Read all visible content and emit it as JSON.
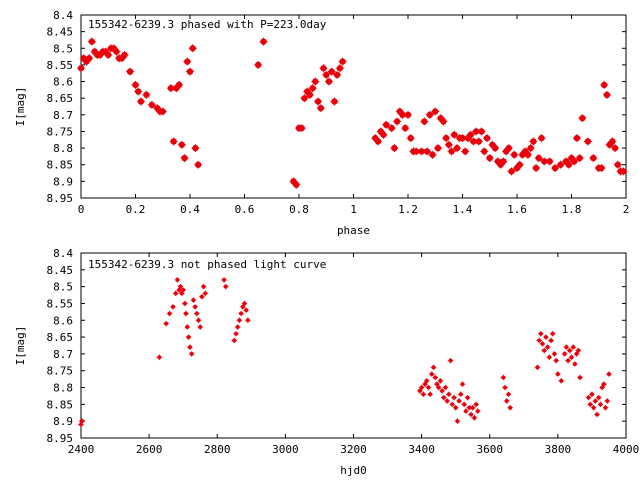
{
  "chart_data": [
    {
      "type": "scatter",
      "title": "155342-6239.3 phased with P=223.0day",
      "xlabel": "phase",
      "ylabel": "I[mag]",
      "xlim": [
        0,
        2
      ],
      "ylim": [
        8.95,
        8.4
      ],
      "y_inverted": true,
      "xticks": [
        "0",
        "0.2",
        "0.4",
        "0.6",
        "0.8",
        "1",
        "1.2",
        "1.4",
        "1.6",
        "1.8",
        "2"
      ],
      "yticks": [
        "8.4",
        "8.45",
        "8.5",
        "8.55",
        "8.6",
        "8.65",
        "8.7",
        "8.75",
        "8.8",
        "8.85",
        "8.9",
        "8.95"
      ],
      "marker_color": "#e8000b",
      "series": [
        {
          "x": [
            0.0,
            0.01,
            0.02,
            0.03,
            0.04,
            0.05,
            0.06,
            0.07,
            0.08,
            0.09,
            0.1,
            0.11,
            0.12,
            0.13,
            0.14,
            0.15,
            0.16,
            0.18,
            0.2,
            0.21,
            0.22,
            0.24,
            0.26,
            0.28,
            0.29,
            0.3,
            0.33,
            0.34,
            0.35,
            0.36,
            0.37,
            0.38,
            0.39,
            0.4,
            0.41,
            0.42,
            0.43,
            0.65,
            0.67,
            0.78,
            0.79,
            0.8,
            0.81,
            0.82,
            0.83,
            0.84,
            0.85,
            0.86,
            0.87,
            0.88,
            0.89,
            0.9,
            0.91,
            0.92,
            0.93,
            0.94,
            0.95,
            0.96,
            1.08,
            1.09,
            1.1,
            1.11,
            1.12,
            1.14,
            1.15,
            1.16,
            1.17,
            1.18,
            1.19,
            1.2,
            1.21,
            1.22,
            1.23,
            1.25,
            1.26,
            1.27,
            1.28,
            1.29,
            1.3,
            1.31,
            1.32,
            1.33,
            1.34,
            1.35,
            1.36,
            1.37,
            1.38,
            1.39,
            1.4,
            1.41,
            1.42,
            1.43,
            1.44,
            1.45,
            1.46,
            1.47,
            1.48,
            1.49,
            1.5,
            1.51,
            1.52,
            1.53,
            1.54,
            1.55,
            1.56,
            1.57,
            1.58,
            1.59,
            1.6,
            1.61,
            1.62,
            1.63,
            1.64,
            1.65,
            1.66,
            1.67,
            1.68,
            1.69,
            1.7,
            1.72,
            1.74,
            1.76,
            1.78,
            1.79,
            1.8,
            1.81,
            1.82,
            1.83,
            1.84,
            1.86,
            1.88,
            1.9,
            1.91,
            1.92,
            1.93,
            1.94,
            1.95,
            1.96,
            1.97,
            1.98,
            1.99
          ],
          "y": [
            8.56,
            8.53,
            8.54,
            8.53,
            8.48,
            8.51,
            8.52,
            8.52,
            8.51,
            8.51,
            8.52,
            8.5,
            8.5,
            8.51,
            8.53,
            8.53,
            8.52,
            8.57,
            8.61,
            8.63,
            8.66,
            8.64,
            8.67,
            8.68,
            8.69,
            8.69,
            8.62,
            8.78,
            8.62,
            8.61,
            8.79,
            8.83,
            8.54,
            8.57,
            8.5,
            8.8,
            8.85,
            8.55,
            8.48,
            8.9,
            8.91,
            8.74,
            8.74,
            8.65,
            8.63,
            8.64,
            8.62,
            8.6,
            8.66,
            8.68,
            8.56,
            8.58,
            8.6,
            8.57,
            8.66,
            8.58,
            8.56,
            8.54,
            8.77,
            8.78,
            8.75,
            8.76,
            8.73,
            8.74,
            8.8,
            8.72,
            8.69,
            8.7,
            8.74,
            8.7,
            8.77,
            8.81,
            8.81,
            8.81,
            8.72,
            8.81,
            8.7,
            8.82,
            8.69,
            8.8,
            8.71,
            8.72,
            8.77,
            8.79,
            8.81,
            8.76,
            8.8,
            8.77,
            8.77,
            8.81,
            8.77,
            8.76,
            8.78,
            8.75,
            8.78,
            8.75,
            8.81,
            8.77,
            8.83,
            8.79,
            8.8,
            8.84,
            8.85,
            8.84,
            8.81,
            8.8,
            8.87,
            8.82,
            8.86,
            8.85,
            8.82,
            8.81,
            8.82,
            8.8,
            8.78,
            8.86,
            8.83,
            8.77,
            8.84,
            8.84,
            8.86,
            8.85,
            8.84,
            8.85,
            8.83,
            8.84,
            8.77,
            8.83,
            8.71,
            8.78,
            8.83,
            8.86,
            8.86,
            8.61,
            8.64,
            8.79,
            8.78,
            8.8,
            8.85,
            8.87,
            8.87
          ]
        }
      ]
    },
    {
      "type": "scatter",
      "title": "155342-6239.3 not phased light curve",
      "xlabel": "hjd0",
      "ylabel": "I[mag]",
      "xlim": [
        2400,
        4000
      ],
      "ylim": [
        8.95,
        8.4
      ],
      "y_inverted": true,
      "xticks": [
        "2400",
        "2600",
        "2800",
        "3000",
        "3200",
        "3400",
        "3600",
        "3800",
        "4000"
      ],
      "yticks": [
        "8.4",
        "8.45",
        "8.5",
        "8.55",
        "8.6",
        "8.65",
        "8.7",
        "8.75",
        "8.8",
        "8.85",
        "8.9",
        "8.95"
      ],
      "marker_color": "#e8000b",
      "series": [
        {
          "x": [
            2400,
            2402,
            2403,
            2630,
            2650,
            2660,
            2670,
            2678,
            2683,
            2688,
            2692,
            2696,
            2700,
            2705,
            2708,
            2712,
            2716,
            2720,
            2725,
            2730,
            2735,
            2740,
            2745,
            2750,
            2755,
            2760,
            2765,
            2820,
            2825,
            2850,
            2855,
            2860,
            2865,
            2870,
            2875,
            2880,
            2885,
            2890,
            3395,
            3400,
            3405,
            3410,
            3415,
            3420,
            3425,
            3430,
            3435,
            3440,
            3445,
            3450,
            3455,
            3460,
            3465,
            3470,
            3475,
            3480,
            3485,
            3490,
            3495,
            3500,
            3505,
            3510,
            3515,
            3520,
            3525,
            3530,
            3535,
            3540,
            3545,
            3550,
            3555,
            3560,
            3565,
            3640,
            3645,
            3650,
            3655,
            3660,
            3740,
            3745,
            3750,
            3755,
            3760,
            3765,
            3770,
            3775,
            3780,
            3785,
            3790,
            3795,
            3800,
            3810,
            3820,
            3825,
            3830,
            3835,
            3840,
            3845,
            3850,
            3855,
            3860,
            3865,
            3890,
            3895,
            3900,
            3905,
            3910,
            3915,
            3920,
            3925,
            3930,
            3935,
            3940,
            3945,
            3950
          ],
          "y": [
            8.91,
            8.9,
            8.9,
            8.71,
            8.61,
            8.58,
            8.56,
            8.52,
            8.48,
            8.51,
            8.5,
            8.52,
            8.51,
            8.55,
            8.58,
            8.62,
            8.65,
            8.68,
            8.7,
            8.54,
            8.56,
            8.58,
            8.6,
            8.62,
            8.53,
            8.5,
            8.52,
            8.48,
            8.5,
            8.66,
            8.64,
            8.62,
            8.6,
            8.58,
            8.56,
            8.55,
            8.57,
            8.6,
            8.81,
            8.8,
            8.82,
            8.79,
            8.78,
            8.8,
            8.82,
            8.76,
            8.74,
            8.77,
            8.79,
            8.8,
            8.78,
            8.81,
            8.83,
            8.8,
            8.84,
            8.82,
            8.72,
            8.85,
            8.83,
            8.86,
            8.9,
            8.84,
            8.82,
            8.79,
            8.85,
            8.87,
            8.83,
            8.86,
            8.88,
            8.86,
            8.89,
            8.85,
            8.87,
            8.77,
            8.8,
            8.84,
            8.82,
            8.86,
            8.74,
            8.66,
            8.64,
            8.67,
            8.69,
            8.65,
            8.68,
            8.71,
            8.66,
            8.64,
            8.7,
            8.72,
            8.76,
            8.78,
            8.7,
            8.68,
            8.72,
            8.69,
            8.71,
            8.68,
            8.73,
            8.7,
            8.69,
            8.77,
            8.83,
            8.85,
            8.82,
            8.86,
            8.84,
            8.88,
            8.83,
            8.85,
            8.8,
            8.79,
            8.86,
            8.84,
            8.76
          ]
        }
      ]
    }
  ]
}
